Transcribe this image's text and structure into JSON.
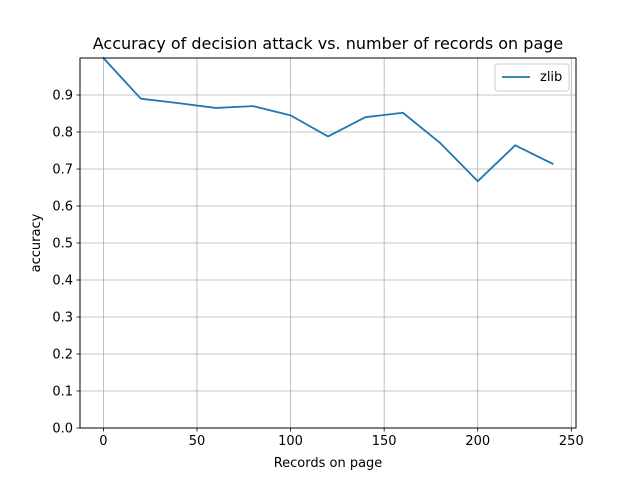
{
  "chart_data": {
    "type": "line",
    "title": "Accuracy of decision attack vs. number of records on page",
    "xlabel": "Records on page",
    "ylabel": "accuracy",
    "xlim": [
      -12.5,
      252.5
    ],
    "ylim": [
      0.0,
      1.0
    ],
    "x_ticks": [
      0,
      50,
      100,
      150,
      200,
      250
    ],
    "x_tick_labels": [
      "0",
      "50",
      "100",
      "150",
      "200",
      "250"
    ],
    "y_ticks": [
      0.0,
      0.1,
      0.2,
      0.3,
      0.4,
      0.5,
      0.6,
      0.7,
      0.8,
      0.9
    ],
    "y_tick_labels": [
      "0.0",
      "0.1",
      "0.2",
      "0.3",
      "0.4",
      "0.5",
      "0.6",
      "0.7",
      "0.8",
      "0.9"
    ],
    "grid": true,
    "legend_position": "top-right",
    "series": [
      {
        "name": "zlib",
        "color": "#1f77b4",
        "x": [
          0,
          20,
          40,
          60,
          80,
          100,
          120,
          140,
          160,
          180,
          200,
          220,
          240
        ],
        "y": [
          1.0,
          0.89,
          0.878,
          0.865,
          0.87,
          0.845,
          0.788,
          0.84,
          0.852,
          0.77,
          0.667,
          0.764,
          0.714
        ]
      }
    ]
  }
}
